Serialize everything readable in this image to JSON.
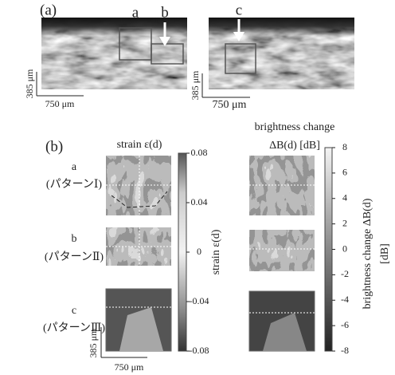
{
  "panel_a": {
    "label": "(a)",
    "markers": [
      "a",
      "b",
      "c"
    ],
    "scale_left": {
      "vertical": "385 μm",
      "horizontal": "750 μm"
    },
    "scale_right": {
      "vertical": "385 μm",
      "horizontal": "750 μm"
    }
  },
  "panel_b": {
    "label": "(b)",
    "strain_title": "strain ε(d)",
    "brightness_title": [
      "brightness change",
      "ΔB(d) [dB]"
    ],
    "rows": [
      {
        "name": "a",
        "pattern": "(パターンⅠ)"
      },
      {
        "name": "b",
        "pattern": "(パターンⅡ)"
      },
      {
        "name": "c",
        "pattern": "(パターンⅢ)"
      }
    ],
    "strain_colorbar": {
      "label": "strain ε(d)",
      "ticks": [
        "0.08",
        "0.04",
        "0",
        "-0.04",
        "-0.08"
      ]
    },
    "brightness_colorbar": {
      "label": [
        "brightness change ΔB(d)",
        "[dB]"
      ],
      "ticks": [
        "8",
        "6",
        "4",
        "2",
        "0",
        "-2",
        "-4",
        "-6",
        "-8"
      ]
    },
    "scale": {
      "vertical": "385 μm",
      "horizontal": "750 μm"
    }
  }
}
